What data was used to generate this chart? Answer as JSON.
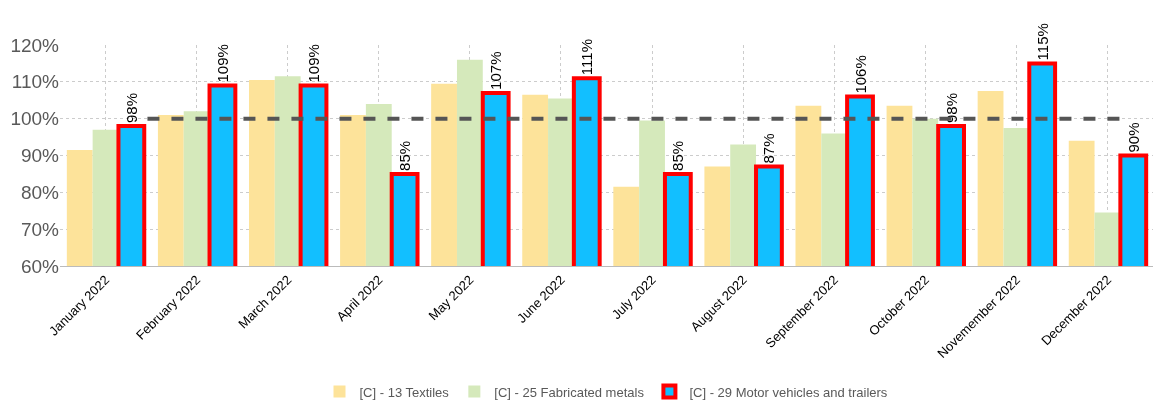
{
  "chart_data": {
    "type": "bar",
    "categories": [
      "January 2022",
      "February 2022",
      "March 2022",
      "April 2022",
      "May 2022",
      "June 2022",
      "July 2022",
      "August 2022",
      "September 2022",
      "October 2022",
      "Novemember 2022",
      "December 2022"
    ],
    "series": [
      {
        "name": "[C] - 13 Textiles",
        "color": "#fde39a",
        "values": [
          91.5,
          101,
          110.5,
          101,
          109.5,
          106.5,
          81.5,
          87,
          103.5,
          103.5,
          107.5,
          94
        ]
      },
      {
        "name": "[C] - 25 Fabricated metals",
        "color": "#d5e9bb",
        "values": [
          97,
          102,
          111.5,
          104,
          116,
          105.5,
          99.5,
          93,
          96,
          100,
          97.5,
          74.5
        ]
      },
      {
        "name": "[C] - 29 Motor vehicles and trailers",
        "color": "#12bfff",
        "values": [
          98,
          109,
          109,
          85,
          107,
          111,
          85,
          87,
          106,
          98,
          115,
          90
        ],
        "value_labels": [
          "98%",
          "109%",
          "109%",
          "85%",
          "107%",
          "111%",
          "85%",
          "87%",
          "106%",
          "98%",
          "115%",
          "90%"
        ]
      }
    ],
    "ylim": [
      60,
      120
    ],
    "yticks": [
      {
        "value": 60,
        "label": "60%"
      },
      {
        "value": 70,
        "label": "70%"
      },
      {
        "value": 80,
        "label": "80%"
      },
      {
        "value": 90,
        "label": "90%"
      },
      {
        "value": 100,
        "label": "100%"
      },
      {
        "value": 110,
        "label": "110%"
      },
      {
        "value": 120,
        "label": "120%"
      }
    ],
    "ref_lines": [
      {
        "axis": "y",
        "value": 100,
        "color": "#555555",
        "line_style": "dashed"
      }
    ],
    "grid": true,
    "legend": "bottom"
  }
}
